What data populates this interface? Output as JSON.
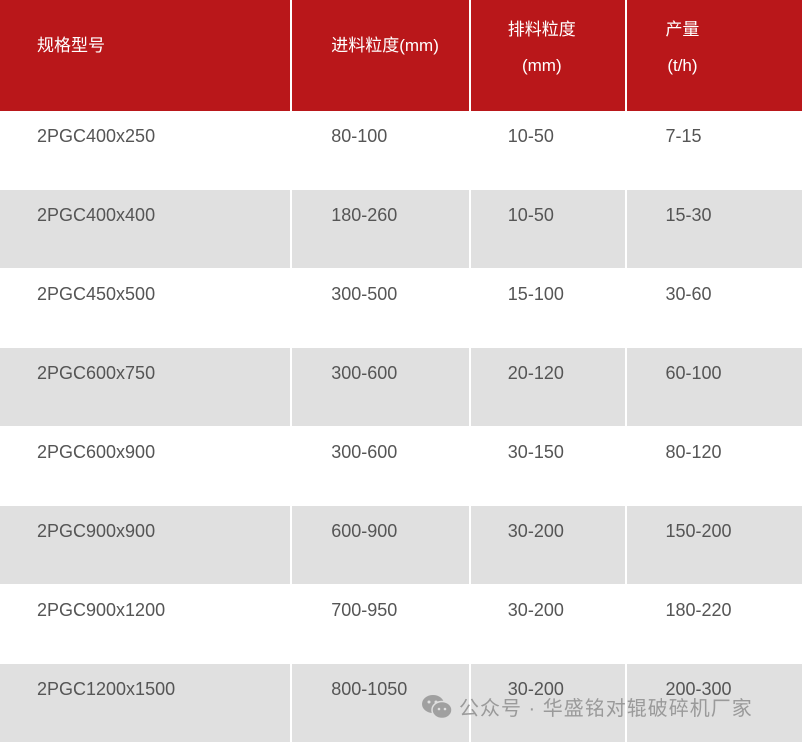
{
  "colors": {
    "header_bg": "#b9171a",
    "stripe": "#e0e0e0"
  },
  "header": [
    {
      "line1": "规格型号"
    },
    {
      "line1": "进料粒度(mm)"
    },
    {
      "line1": "排料粒度",
      "line2": "(mm)"
    },
    {
      "line1": "产量",
      "line2": "(t/h)"
    }
  ],
  "rows": [
    [
      "2PGC400x250",
      "80-100",
      "10-50",
      "7-15"
    ],
    [
      "2PGC400x400",
      "180-260",
      "10-50",
      "15-30"
    ],
    [
      "2PGC450x500",
      "300-500",
      "15-100",
      "30-60"
    ],
    [
      "2PGC600x750",
      "300-600",
      "20-120",
      "60-100"
    ],
    [
      "2PGC600x900",
      "300-600",
      "30-150",
      "80-120"
    ],
    [
      "2PGC900x900",
      "600-900",
      "30-200",
      "150-200"
    ],
    [
      "2PGC900x1200",
      "700-950",
      "30-200",
      "180-220"
    ],
    [
      "2PGC1200x1500",
      "800-1050",
      "30-200",
      "200-300"
    ]
  ],
  "watermark": {
    "icon": "wechat-icon",
    "text": "公众号 · 华盛铭对辊破碎机厂家"
  }
}
